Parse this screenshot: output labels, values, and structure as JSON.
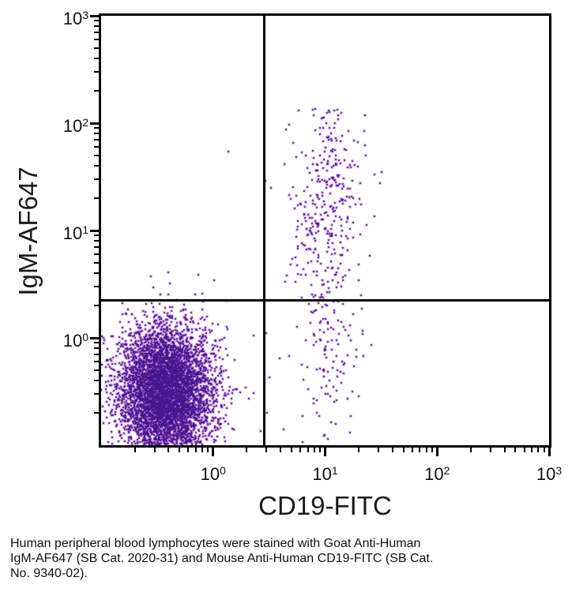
{
  "figure": {
    "background": "#ffffff",
    "caption_lines": [
      "Human peripheral blood lymphocytes were stained with Goat Anti-Human",
      "IgM-AF647 (SB Cat. 2020-31) and Mouse Anti-Human CD19-FITC (SB Cat.",
      "No. 9340-02)."
    ]
  },
  "chart_data": {
    "type": "scatter",
    "variant": "flow-cytometry-quadrant-dot-plot",
    "title": "",
    "xlabel": "CD19-FITC",
    "ylabel": "IgM-AF647",
    "xscale": "log",
    "yscale": "log",
    "xlim": [
      0.1,
      1000
    ],
    "ylim": [
      0.1,
      1000
    ],
    "x_tick_labels": [
      "10^0",
      "10^1",
      "10^2",
      "10^3"
    ],
    "y_tick_labels": [
      "10^0",
      "10^1",
      "10^2",
      "10^3"
    ],
    "x_tick_exponents": [
      0,
      1,
      2,
      3
    ],
    "y_tick_exponents": [
      0,
      1,
      2,
      3
    ],
    "minor_tick_multiples": [
      2,
      3,
      4,
      5,
      6,
      7,
      8,
      9
    ],
    "grid": false,
    "legend": null,
    "quadrant_gates": {
      "x": 2.84,
      "y": 2.22
    },
    "point_color": "#45188f",
    "point_halo_color": "rgba(186,92,206,0.32)",
    "axis_color": "#000000",
    "series": [
      {
        "name": "lymphocytes-CD19neg-IgMneg",
        "distribution": "lognormal-cluster",
        "center": [
          0.38,
          0.31
        ],
        "sigma_decades": [
          0.2,
          0.3
        ],
        "count": 5800
      },
      {
        "name": "b-cells-CD19pos-IgMpos",
        "distribution": "lognormal-cluster",
        "center": [
          10.5,
          17
        ],
        "sigma_decades": [
          0.16,
          0.48
        ],
        "count": 330,
        "clamp_log_y_max": 2.13
      },
      {
        "name": "b-cells-CD19pos-IgMlow",
        "distribution": "lognormal-cluster",
        "center": [
          10.2,
          0.75
        ],
        "sigma_decades": [
          0.15,
          0.42
        ],
        "count": 125
      }
    ],
    "outlier_points": [
      [
        1.37,
        54
      ],
      [
        0.28,
        3.75
      ],
      [
        0.34,
        2.55
      ],
      [
        0.41,
        3.2
      ],
      [
        0.74,
        3.9
      ],
      [
        0.8,
        2.6
      ],
      [
        1.02,
        3.45
      ],
      [
        0.29,
        2.95
      ],
      [
        2.95,
        29
      ],
      [
        3.3,
        25
      ],
      [
        2.1,
        0.27
      ],
      [
        1.35,
        1.2
      ],
      [
        2.3,
        1.05
      ],
      [
        3.0,
        1.1
      ],
      [
        3.05,
        0.2
      ]
    ],
    "seed": 20203140
  }
}
